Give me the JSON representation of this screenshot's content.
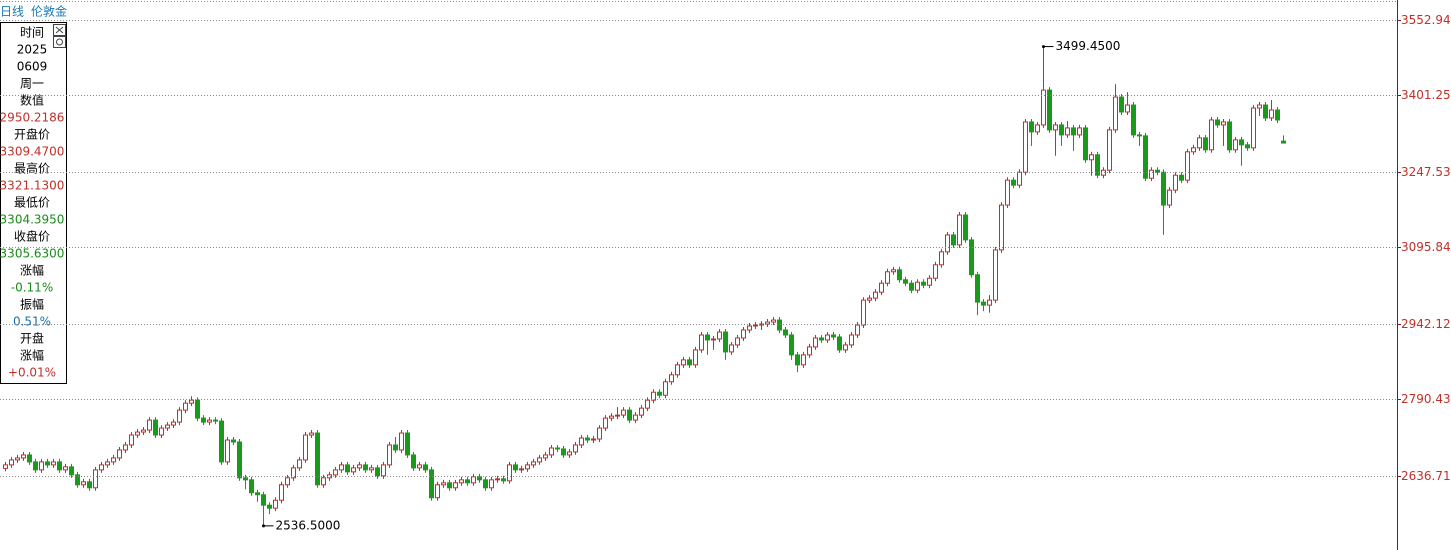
{
  "header": {
    "period": "日线",
    "symbol": "伦敦金"
  },
  "info_panel": [
    {
      "text": "时间",
      "color": "#000000"
    },
    {
      "text": "2025",
      "color": "#000000"
    },
    {
      "text": "0609",
      "color": "#000000"
    },
    {
      "text": "周一",
      "color": "#000000"
    },
    {
      "text": "数值",
      "color": "#000000"
    },
    {
      "text": "2950.2186",
      "color": "#c0302a"
    },
    {
      "text": "开盘价",
      "color": "#000000"
    },
    {
      "text": "3309.4700",
      "color": "#c0302a"
    },
    {
      "text": "最高价",
      "color": "#000000"
    },
    {
      "text": "3321.1300",
      "color": "#c0302a"
    },
    {
      "text": "最低价",
      "color": "#000000"
    },
    {
      "text": "3304.3950",
      "color": "#1a8c1a"
    },
    {
      "text": "收盘价",
      "color": "#000000"
    },
    {
      "text": "3305.6300",
      "color": "#1a8c1a"
    },
    {
      "text": "涨幅",
      "color": "#000000"
    },
    {
      "text": "-0.11%",
      "color": "#1a8c1a"
    },
    {
      "text": "振幅",
      "color": "#000000"
    },
    {
      "text": "0.51%",
      "color": "#1a6fb0"
    },
    {
      "text": "开盘",
      "color": "#000000"
    },
    {
      "text": "涨幅",
      "color": "#000000"
    },
    {
      "text": "+0.01%",
      "color": "#c0302a"
    }
  ],
  "chart_data": {
    "type": "candlestick",
    "up_color": "#c0302a",
    "down_color": "#1a9a1a",
    "ylim": [
      2488,
      3593
    ],
    "yticks": [
      3552.947,
      3401.253,
      3247.537,
      3095.844,
      2942.128,
      2790.434,
      2636.718
    ],
    "grid": true,
    "annotations": {
      "max_label": "3499.4500",
      "min_label": "2536.5000"
    },
    "open": [
      2652,
      2659,
      2669,
      2673,
      2679,
      2665,
      2649,
      2665,
      2659,
      2665,
      2649,
      2655,
      2639,
      2619,
      2625,
      2613,
      2649,
      2659,
      2665,
      2673,
      2689,
      2699,
      2719,
      2725,
      2729,
      2749,
      2719,
      2733,
      2739,
      2745,
      2769,
      2783,
      2789,
      2753,
      2745,
      2749,
      2747,
      2665,
      2709,
      2705,
      2633,
      2629,
      2603,
      2599,
      2578,
      2572,
      2588,
      2619,
      2633,
      2653,
      2669,
      2719,
      2723,
      2619,
      2633,
      2639,
      2649,
      2659,
      2645,
      2653,
      2659,
      2649,
      2653,
      2637,
      2659,
      2699,
      2689,
      2723,
      2679,
      2653,
      2659,
      2649,
      2593,
      2619,
      2623,
      2613,
      2623,
      2629,
      2623,
      2635,
      2629,
      2613,
      2629,
      2631,
      2627,
      2659,
      2649,
      2651,
      2659,
      2665,
      2673,
      2679,
      2693,
      2691,
      2679,
      2685,
      2699,
      2713,
      2709,
      2711,
      2733,
      2753,
      2757,
      2759,
      2769,
      2749,
      2759,
      2773,
      2789,
      2805,
      2799,
      2826,
      2840,
      2860,
      2870,
      2860,
      2890,
      2920,
      2910,
      2912,
      2926,
      2886,
      2900,
      2914,
      2930,
      2938,
      2940,
      2942,
      2946,
      2950,
      2930,
      2920,
      2880,
      2860,
      2880,
      2896,
      2914,
      2910,
      2920,
      2916,
      2890,
      2900,
      2920,
      2940,
      2990,
      2994,
      3006,
      3024,
      3047,
      3051,
      3031,
      3024,
      3010,
      3026,
      3020,
      3034,
      3061,
      3087,
      3121,
      3101,
      3161,
      3111,
      3041,
      2986,
      2980,
      2990,
      3091,
      3181,
      3231,
      3221,
      3247,
      3348,
      3328,
      3342,
      3412,
      3332,
      3342,
      3322,
      3336,
      3322,
      3336,
      3272,
      3282,
      3241,
      3251,
      3332,
      3398,
      3368,
      3382,
      3322,
      3320,
      3235,
      3251,
      3247,
      3181,
      3211,
      3241,
      3231,
      3288,
      3296,
      3316,
      3292,
      3352,
      3342,
      3348,
      3292,
      3312,
      3302,
      3296,
      3376,
      3382,
      3356,
      3372,
      3309.47
    ],
    "high": [
      2665,
      2675,
      2679,
      2685,
      2685,
      2671,
      2671,
      2671,
      2671,
      2671,
      2661,
      2661,
      2645,
      2631,
      2631,
      2655,
      2665,
      2671,
      2679,
      2695,
      2705,
      2725,
      2731,
      2735,
      2755,
      2755,
      2739,
      2745,
      2751,
      2775,
      2789,
      2797,
      2795,
      2759,
      2755,
      2755,
      2753,
      2715,
      2715,
      2711,
      2639,
      2635,
      2609,
      2605,
      2584,
      2594,
      2625,
      2639,
      2659,
      2675,
      2725,
      2729,
      2729,
      2639,
      2645,
      2655,
      2665,
      2665,
      2659,
      2665,
      2665,
      2659,
      2659,
      2665,
      2705,
      2715,
      2729,
      2729,
      2685,
      2665,
      2665,
      2655,
      2625,
      2629,
      2629,
      2629,
      2635,
      2635,
      2641,
      2641,
      2635,
      2635,
      2637,
      2637,
      2665,
      2665,
      2657,
      2665,
      2671,
      2679,
      2685,
      2699,
      2699,
      2697,
      2691,
      2705,
      2719,
      2719,
      2717,
      2739,
      2759,
      2763,
      2775,
      2775,
      2775,
      2765,
      2779,
      2795,
      2811,
      2811,
      2832,
      2846,
      2866,
      2876,
      2876,
      2896,
      2926,
      2926,
      2918,
      2932,
      2932,
      2906,
      2920,
      2936,
      2944,
      2946,
      2948,
      2952,
      2956,
      2956,
      2936,
      2926,
      2886,
      2886,
      2902,
      2920,
      2920,
      2926,
      2926,
      2922,
      2906,
      2926,
      2946,
      2996,
      3000,
      3012,
      3030,
      3053,
      3057,
      3057,
      3037,
      3030,
      3032,
      3032,
      3040,
      3067,
      3093,
      3127,
      3127,
      3167,
      3167,
      3117,
      3047,
      2992,
      3000,
      3097,
      3187,
      3237,
      3237,
      3253,
      3354,
      3354,
      3348,
      3499.45,
      3418,
      3348,
      3348,
      3350,
      3342,
      3342,
      3342,
      3288,
      3288,
      3257,
      3338,
      3424,
      3404,
      3408,
      3388,
      3328,
      3326,
      3257,
      3257,
      3253,
      3217,
      3247,
      3247,
      3294,
      3302,
      3322,
      3322,
      3358,
      3358,
      3354,
      3354,
      3318,
      3318,
      3308,
      3382,
      3388,
      3388,
      3392,
      3378,
      3321.13
    ],
    "low": [
      2646,
      2653,
      2663,
      2667,
      2659,
      2643,
      2643,
      2653,
      2653,
      2643,
      2643,
      2633,
      2613,
      2613,
      2607,
      2607,
      2643,
      2653,
      2659,
      2667,
      2683,
      2693,
      2713,
      2719,
      2723,
      2713,
      2713,
      2727,
      2733,
      2739,
      2763,
      2777,
      2747,
      2739,
      2739,
      2741,
      2659,
      2659,
      2699,
      2627,
      2610,
      2597,
      2585,
      2536.5,
      2560,
      2566,
      2582,
      2613,
      2627,
      2647,
      2663,
      2713,
      2613,
      2613,
      2627,
      2633,
      2643,
      2639,
      2639,
      2647,
      2643,
      2643,
      2631,
      2631,
      2653,
      2683,
      2683,
      2673,
      2647,
      2647,
      2643,
      2587,
      2587,
      2613,
      2607,
      2607,
      2617,
      2617,
      2617,
      2623,
      2607,
      2607,
      2623,
      2621,
      2621,
      2643,
      2643,
      2645,
      2653,
      2659,
      2667,
      2673,
      2685,
      2673,
      2673,
      2679,
      2693,
      2703,
      2703,
      2705,
      2727,
      2747,
      2751,
      2753,
      2743,
      2743,
      2753,
      2767,
      2783,
      2793,
      2793,
      2820,
      2834,
      2854,
      2854,
      2854,
      2884,
      2880,
      2890,
      2906,
      2870,
      2880,
      2894,
      2908,
      2924,
      2932,
      2930,
      2936,
      2940,
      2924,
      2914,
      2870,
      2845,
      2854,
      2874,
      2890,
      2904,
      2904,
      2910,
      2884,
      2884,
      2894,
      2914,
      2934,
      2984,
      2988,
      3000,
      3018,
      3041,
      3025,
      3018,
      3004,
      3004,
      3014,
      3014,
      3028,
      3055,
      3081,
      3095,
      3095,
      3105,
      3035,
      2960,
      2968,
      2965,
      2984,
      3085,
      3175,
      3215,
      3215,
      3241,
      3300,
      3322,
      3336,
      3326,
      3280,
      3300,
      3316,
      3290,
      3316,
      3266,
      3240,
      3235,
      3235,
      3245,
      3326,
      3362,
      3362,
      3316,
      3300,
      3229,
      3229,
      3241,
      3121,
      3175,
      3205,
      3225,
      3225,
      3282,
      3290,
      3286,
      3286,
      3336,
      3300,
      3286,
      3286,
      3260,
      3290,
      3290,
      3360,
      3350,
      3350,
      3346,
      3304.395
    ],
    "close": [
      2659,
      2669,
      2673,
      2679,
      2665,
      2649,
      2665,
      2659,
      2665,
      2649,
      2655,
      2639,
      2619,
      2625,
      2613,
      2649,
      2659,
      2665,
      2673,
      2689,
      2699,
      2719,
      2725,
      2729,
      2749,
      2719,
      2733,
      2739,
      2745,
      2769,
      2783,
      2789,
      2753,
      2745,
      2749,
      2747,
      2665,
      2709,
      2705,
      2633,
      2629,
      2603,
      2599,
      2578,
      2572,
      2588,
      2619,
      2633,
      2653,
      2669,
      2719,
      2723,
      2619,
      2633,
      2639,
      2649,
      2659,
      2645,
      2653,
      2659,
      2649,
      2653,
      2637,
      2659,
      2699,
      2689,
      2723,
      2679,
      2653,
      2659,
      2649,
      2593,
      2619,
      2623,
      2613,
      2623,
      2629,
      2623,
      2635,
      2629,
      2613,
      2629,
      2631,
      2627,
      2659,
      2649,
      2651,
      2659,
      2665,
      2673,
      2679,
      2693,
      2691,
      2679,
      2685,
      2699,
      2713,
      2709,
      2711,
      2733,
      2753,
      2757,
      2759,
      2769,
      2749,
      2759,
      2773,
      2789,
      2805,
      2799,
      2826,
      2840,
      2860,
      2870,
      2860,
      2890,
      2920,
      2910,
      2912,
      2926,
      2886,
      2900,
      2914,
      2930,
      2938,
      2940,
      2942,
      2946,
      2950,
      2930,
      2920,
      2880,
      2860,
      2880,
      2896,
      2914,
      2910,
      2920,
      2916,
      2890,
      2900,
      2920,
      2940,
      2990,
      2994,
      3006,
      3024,
      3047,
      3051,
      3031,
      3024,
      3010,
      3026,
      3020,
      3034,
      3061,
      3087,
      3121,
      3101,
      3161,
      3111,
      3041,
      2986,
      2980,
      2990,
      3091,
      3181,
      3231,
      3221,
      3247,
      3348,
      3328,
      3342,
      3412,
      3332,
      3342,
      3322,
      3336,
      3322,
      3336,
      3272,
      3282,
      3241,
      3251,
      3332,
      3398,
      3368,
      3382,
      3322,
      3320,
      3235,
      3251,
      3247,
      3181,
      3211,
      3241,
      3231,
      3288,
      3296,
      3316,
      3292,
      3352,
      3342,
      3348,
      3292,
      3312,
      3302,
      3296,
      3376,
      3382,
      3356,
      3372,
      3352,
      3305.63
    ]
  }
}
